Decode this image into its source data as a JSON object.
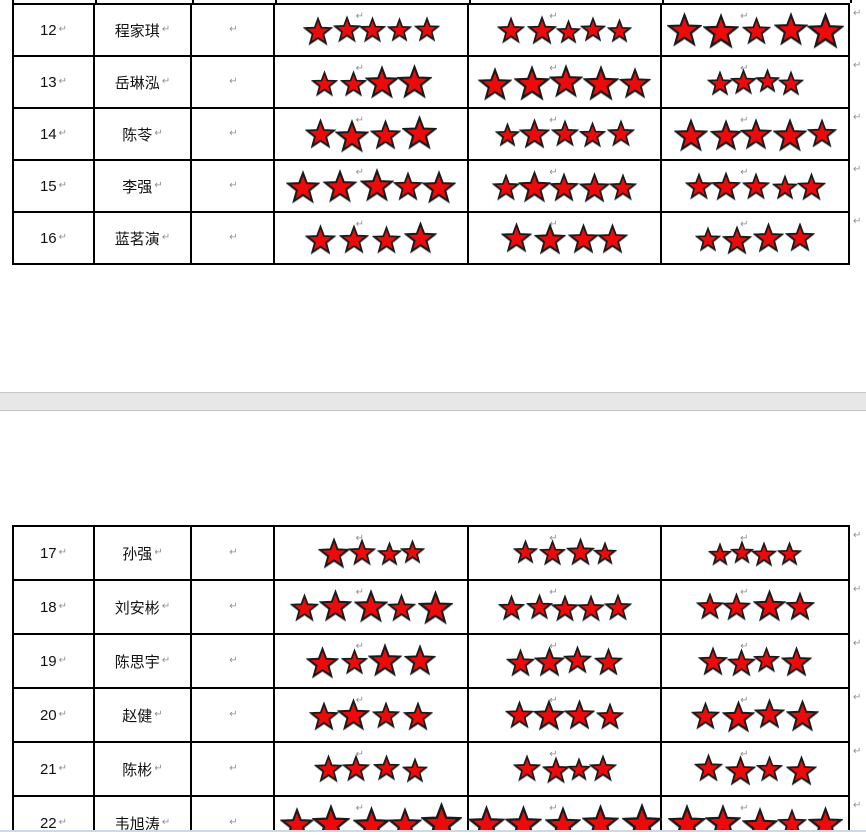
{
  "document": {
    "kind": "word-rating-table-view",
    "paragraph_mark": "↵",
    "colors": {
      "star_fill": "#ee0a0a",
      "star_stroke": "#1a1a1a",
      "table_border": "#000000",
      "page_gap_bg": "#e7e7e7",
      "page_gap_edge": "#c6c6c6",
      "mark_color": "#8f8f8f",
      "bottom_edge_line": "#ccd9e8"
    },
    "columns": [
      "number",
      "name",
      "blank",
      "rating-1",
      "rating-2",
      "rating-3"
    ],
    "tables": [
      {
        "page": 1,
        "rows": [
          {
            "num": "12",
            "name": "程家琪",
            "ratings": [
              5,
              5,
              5
            ]
          },
          {
            "num": "13",
            "name": "岳琳泓",
            "ratings": [
              4,
              5,
              4
            ]
          },
          {
            "num": "14",
            "name": "陈苓",
            "ratings": [
              4,
              5,
              5
            ]
          },
          {
            "num": "15",
            "name": "李强",
            "ratings": [
              5,
              5,
              5
            ]
          },
          {
            "num": "16",
            "name": "蓝茗演",
            "ratings": [
              4,
              4,
              4
            ]
          }
        ]
      },
      {
        "page": 2,
        "rows": [
          {
            "num": "17",
            "name": "孙强",
            "ratings": [
              4,
              4,
              4
            ]
          },
          {
            "num": "18",
            "name": "刘安彬",
            "ratings": [
              5,
              5,
              4
            ]
          },
          {
            "num": "19",
            "name": "陈思宇",
            "ratings": [
              4,
              4,
              4
            ]
          },
          {
            "num": "20",
            "name": "赵健",
            "ratings": [
              4,
              4,
              4
            ]
          },
          {
            "num": "21",
            "name": "陈彬",
            "ratings": [
              4,
              4,
              4
            ]
          },
          {
            "num": "22",
            "name": "韦旭涛",
            "ratings": [
              5,
              5,
              5
            ]
          }
        ]
      }
    ]
  }
}
